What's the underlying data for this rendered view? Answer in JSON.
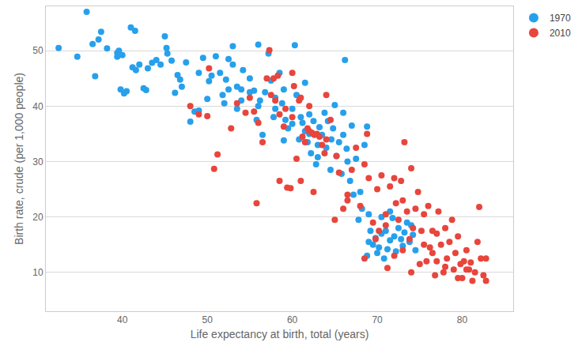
{
  "chart_data": {
    "type": "scatter",
    "x_label": "Life expectancy at birth, total (years)",
    "y_label": "Birth rate, crude (per 1,000 people)",
    "xlim": [
      31,
      86
    ],
    "xticks": [
      40,
      50,
      60,
      70,
      80
    ],
    "ylim": [
      3,
      58
    ],
    "yticks": [
      10,
      20,
      30,
      40,
      50
    ],
    "grid": "y",
    "legend": "top right",
    "marker": "circle",
    "series": [
      {
        "name": "1970",
        "color": "#27a0ec",
        "x": [
          32.5,
          34.7,
          35.8,
          36.5,
          37.2,
          36.8,
          37.5,
          38.2,
          39.4,
          39.4,
          39.6,
          40.0,
          39.8,
          40.2,
          40.5,
          41.0,
          41.5,
          41.2,
          41.6,
          42.0,
          42.5,
          42.8,
          43.0,
          43.5,
          44.0,
          44.5,
          45.0,
          45.2,
          45.3,
          45.8,
          46.5,
          46.8,
          46.2,
          47.0,
          47.5,
          48.0,
          48.5,
          49.0,
          49.5,
          50.2,
          50.5,
          50.0,
          51.0,
          51.5,
          51.8,
          52.0,
          52.2,
          52.5,
          53.0,
          53.0,
          53.5,
          54.0,
          54.0,
          54.2,
          55.0,
          55.5,
          55.8,
          56.0,
          56.2,
          56.5,
          56.8,
          57.2,
          57.5,
          57.8,
          58.0,
          58.5,
          58.8,
          59.0,
          59.2,
          59.5,
          60.0,
          60.3,
          60.5,
          60.8,
          61.0,
          61.2,
          61.5,
          61.8,
          62.0,
          62.2,
          62.5,
          62.8,
          63.0,
          63.2,
          63.5,
          63.8,
          64.0,
          64.2,
          64.5,
          64.6,
          64.8,
          65.0,
          65.2,
          65.5,
          65.8,
          66.0,
          66.2,
          66.4,
          66.5,
          66.8,
          67.0,
          67.2,
          67.5,
          67.8,
          68.0,
          68.2,
          68.5,
          68.8,
          69.0,
          69.2,
          69.5,
          69.8,
          70.0,
          70.2,
          70.5,
          70.8,
          71.0,
          71.2,
          71.5,
          71.8,
          72.0,
          72.2,
          72.5,
          72.8,
          73.0,
          73.2,
          73.5,
          73.8,
          74.0,
          74.2,
          74.5,
          69.0,
          68.8,
          70.5,
          71.5,
          56.0,
          53.5,
          55.0,
          49.0,
          58.0,
          63.0,
          60.0,
          62.0,
          66.0,
          61.5,
          59.0,
          52.5
        ],
        "values": [
          50.5,
          48.9,
          57.0,
          51.2,
          52.0,
          45.4,
          53.4,
          50.4,
          49.6,
          48.9,
          50.0,
          49.2,
          43.0,
          42.3,
          42.7,
          54.2,
          53.6,
          47.0,
          46.5,
          47.5,
          43.2,
          42.9,
          46.8,
          47.8,
          48.3,
          47.5,
          52.6,
          50.5,
          49.5,
          48.2,
          45.6,
          44.8,
          42.4,
          43.5,
          47.9,
          37.2,
          39.0,
          39.2,
          48.7,
          44.5,
          45.5,
          41.3,
          49.0,
          46.0,
          42.0,
          40.5,
          44.8,
          48.5,
          50.8,
          47.5,
          43.5,
          43.0,
          41.0,
          46.5,
          45.0,
          42.8,
          37.5,
          51.1,
          41.0,
          34.8,
          42.5,
          49.5,
          44.6,
          38.0,
          41.5,
          46.0,
          40.5,
          43.0,
          37.5,
          36.0,
          39.5,
          51.0,
          42.0,
          34.0,
          38.0,
          37.0,
          44.2,
          33.5,
          35.0,
          31.5,
          37.3,
          29.5,
          33.0,
          36.2,
          34.8,
          38.8,
          32.5,
          37.3,
          28.5,
          34.0,
          36.0,
          40.2,
          31.0,
          33.5,
          27.8,
          38.8,
          48.3,
          32.3,
          30.0,
          26.5,
          36.5,
          24.0,
          30.5,
          19.5,
          24.5,
          21.5,
          33.0,
          36.3,
          20.5,
          17.5,
          15.0,
          16.2,
          13.5,
          14.5,
          20.0,
          12.5,
          17.5,
          14.2,
          15.8,
          19.8,
          16.5,
          13.8,
          18.0,
          16.0,
          14.8,
          17.2,
          19.0,
          15.5,
          18.5,
          16.8,
          14.0,
          15.5,
          13.0,
          17.0,
          21.0,
          40.0,
          39.5,
          42.5,
          46.0,
          39.5,
          30.8,
          36.8,
          38.5,
          34.8,
          35.5,
          33.8,
          43.0
        ]
      },
      {
        "name": "2010",
        "color": "#e8453c",
        "x": [
          50.2,
          48.0,
          49.0,
          50.0,
          51.2,
          50.8,
          52.8,
          53.5,
          54.5,
          55.0,
          55.5,
          55.8,
          56.0,
          56.5,
          57.0,
          57.3,
          57.5,
          57.8,
          58.0,
          58.3,
          58.5,
          59.0,
          59.2,
          59.4,
          59.8,
          60.0,
          60.2,
          60.5,
          60.8,
          61.0,
          61.2,
          61.5,
          61.8,
          62.0,
          62.3,
          62.6,
          62.9,
          63.2,
          63.5,
          63.8,
          62.5,
          64.0,
          64.5,
          65.0,
          65.2,
          65.5,
          66.0,
          66.5,
          67.0,
          67.5,
          68.0,
          68.5,
          68.8,
          69.0,
          69.5,
          70.0,
          70.2,
          70.5,
          71.0,
          71.2,
          71.5,
          72.0,
          72.2,
          72.5,
          72.8,
          73.0,
          73.2,
          73.5,
          74.0,
          74.2,
          74.5,
          74.8,
          75.0,
          75.2,
          75.5,
          75.8,
          76.0,
          76.2,
          76.5,
          76.8,
          77.0,
          77.2,
          77.5,
          77.8,
          78.0,
          78.2,
          78.5,
          78.8,
          79.0,
          79.2,
          79.5,
          79.8,
          80.0,
          80.2,
          80.5,
          80.8,
          81.0,
          81.2,
          81.5,
          81.8,
          82.0,
          82.2,
          82.5,
          82.8,
          82.8,
          74.0,
          73.0,
          72.0,
          71.0,
          69.8,
          68.5,
          73.8,
          75.5,
          76.5,
          78.0,
          80.5,
          79.5,
          77.0,
          66.5,
          64.0,
          60.0,
          58.5,
          61.0,
          62.0
        ],
        "values": [
          46.8,
          40.0,
          38.5,
          38.2,
          31.3,
          28.7,
          36.0,
          40.5,
          38.8,
          41.5,
          39.0,
          22.5,
          37.0,
          33.5,
          45.0,
          50.1,
          42.0,
          45.0,
          41.0,
          45.5,
          38.5,
          36.3,
          39.5,
          25.3,
          25.2,
          46.0,
          43.6,
          30.5,
          41.0,
          26.5,
          34.5,
          33.5,
          36.0,
          35.5,
          35.2,
          34.8,
          35.0,
          34.5,
          33.0,
          31.5,
          24.5,
          42.0,
          37.5,
          19.5,
          31.0,
          28.0,
          21.5,
          23.0,
          28.5,
          32.5,
          22.0,
          29.5,
          35.0,
          27.0,
          19.0,
          25.0,
          17.5,
          27.5,
          20.5,
          10.8,
          25.5,
          27.0,
          22.5,
          19.5,
          26.5,
          23.0,
          33.5,
          21.0,
          28.8,
          18.0,
          21.5,
          24.5,
          11.5,
          17.5,
          20.5,
          12.0,
          22.0,
          14.5,
          17.5,
          9.5,
          12.0,
          21.0,
          15.0,
          10.0,
          18.0,
          12.5,
          15.5,
          19.5,
          10.5,
          13.5,
          16.5,
          11.5,
          9.0,
          12.0,
          14.0,
          10.5,
          11.8,
          8.5,
          10.0,
          15.5,
          21.8,
          12.5,
          9.5,
          8.5,
          12.5,
          10.0,
          14.0,
          13.0,
          18.5,
          16.0,
          12.5,
          16.0,
          15.0,
          13.5,
          11.0,
          10.5,
          9.0,
          17.0,
          24.0,
          34.0,
          38.0,
          26.5,
          41.5,
          40.0
        ]
      }
    ]
  }
}
